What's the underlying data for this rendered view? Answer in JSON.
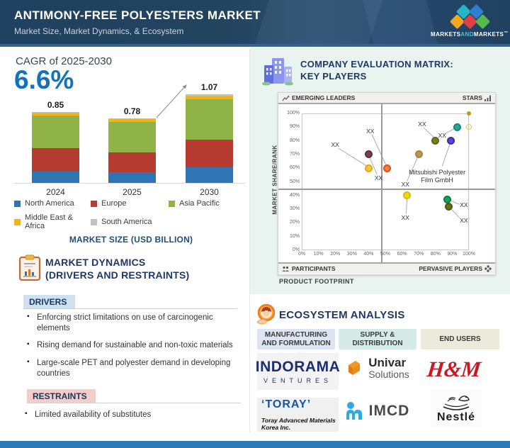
{
  "header": {
    "title": "ANTIMONY-FREE POLYESTERS MARKET",
    "subtitle": "Market Size, Market Dynamics, & Ecosystem",
    "brand": {
      "part1": "MARKETS",
      "part2": "AND",
      "part3": "MARKETS",
      "tm": "™"
    },
    "brand_colors": {
      "teal": "#2ab5c3",
      "blue": "#2f7fd0",
      "yellow": "#f2a71c",
      "red": "#e23e44",
      "green": "#57b948"
    }
  },
  "left": {
    "cagr_label": "CAGR of 2025-2030",
    "cagr_value": "6.6%",
    "dynamics": {
      "heading_line1": "MARKET DYNAMICS",
      "heading_line2": "(DRIVERS AND RESTRAINTS)",
      "drivers_label": "DRIVERS",
      "drivers": [
        "Enforcing strict limitations on use of carcinogenic elements",
        "Rising demand for sustainable and non-toxic materials",
        "Large-scale PET and polyester demand in developing countries"
      ],
      "restraints_label": "RESTRAINTS",
      "restraints": [
        "Limited availability of substitutes"
      ]
    }
  },
  "right": {
    "matrix_title_line1": "COMPANY EVALUATION MATRIX:",
    "matrix_title_line2": "KEY PLAYERS",
    "ecosystem": {
      "title": "ECOSYSTEM ANALYSIS",
      "columns": [
        {
          "line1": "MANUFACTURING",
          "line2": "AND FORMULATION",
          "bg": "#dde4f3"
        },
        {
          "line1": "SUPPLY &",
          "line2": "DISTRIBUTION",
          "bg": "#d5ebe7"
        },
        {
          "line1": "END USERS",
          "line2": "",
          "bg": "#eceadb"
        }
      ],
      "logos": {
        "indorama_line1": "INDORAMA",
        "indorama_line2": "VENTURES",
        "toray_line1": "‘TORAY’",
        "toray_line2": "Toray Advanced Materials Korea Inc.",
        "univar_line1": "Univar",
        "univar_line2": "Solutions",
        "imcd": "IMCD",
        "hm": "H&M",
        "nestle": "Nestlé"
      }
    }
  },
  "chart_data": [
    {
      "type": "bar",
      "stacked": true,
      "title": "MARKET SIZE (USD BILLION)",
      "cagr_label": "CAGR of 2025-2030",
      "cagr_value_pct": 6.6,
      "categories": [
        "2024",
        "2025",
        "2030"
      ],
      "totals": [
        0.85,
        0.78,
        1.07
      ],
      "ylim": [
        0,
        1.2
      ],
      "legend_position": "bottom",
      "series": [
        {
          "name": "North America",
          "color": "#2e75b6",
          "values": [
            0.14,
            0.13,
            0.19
          ]
        },
        {
          "name": "Europe",
          "color": "#b63b31",
          "values": [
            0.28,
            0.24,
            0.33
          ]
        },
        {
          "name": "Asia Pacific",
          "color": "#8fb347",
          "values": [
            0.39,
            0.37,
            0.49
          ]
        },
        {
          "name": "Middle East & Africa",
          "color": "#f2b31b",
          "values": [
            0.03,
            0.03,
            0.04
          ]
        },
        {
          "name": "South America",
          "color": "#c2c2c2",
          "values": [
            0.01,
            0.01,
            0.02
          ]
        }
      ]
    },
    {
      "type": "scatter",
      "title": "COMPANY EVALUATION MATRIX: KEY PLAYERS",
      "xlabel": "PRODUCT FOOTPRINT",
      "ylabel": "MARKET SHARE/RANK",
      "xlim": [
        0,
        100
      ],
      "ylim": [
        0,
        100
      ],
      "tick_step": 10,
      "tick_suffix": "%",
      "quadrants": {
        "top_left": "EMERGING LEADERS",
        "top_right": "STARS",
        "bottom_left": "PARTICIPANTS",
        "bottom_right": "PERVASIVE PLAYERS"
      },
      "divider_x": 48,
      "divider_y": 44.5,
      "points": [
        {
          "x": 40,
          "y": 70,
          "color": "#7a4522",
          "ring": "#5b2a62"
        },
        {
          "x": 40,
          "y": 60,
          "color": "#f6c63e",
          "ring": "#e6a711"
        },
        {
          "x": 51,
          "y": 60,
          "color": "#f08038",
          "ring": "#dd5310"
        },
        {
          "x": 70,
          "y": 70,
          "color": "#b99553",
          "ring": "#a8823f"
        },
        {
          "x": 80,
          "y": 80,
          "color": "#76801c",
          "ring": "#5e660f"
        },
        {
          "x": 93,
          "y": 90,
          "color": "#2fa18c",
          "ring": "#13877c"
        },
        {
          "x": 89,
          "y": 80,
          "color": "#5b44d0",
          "ring": "#3e2ba8"
        },
        {
          "x": 63,
          "y": 40,
          "color": "#f3d714",
          "ring": "#d9b90a"
        },
        {
          "x": 87,
          "y": 37,
          "color": "#1ba25c",
          "ring": "#0f7c44"
        },
        {
          "x": 88,
          "y": 32,
          "color": "#68701a",
          "ring": "#505810"
        },
        {
          "x": 100,
          "y": 100,
          "color": "#c8960c",
          "ring": "#c8960c",
          "r": 3
        },
        {
          "x": 100,
          "y": 90,
          "color": "none",
          "ring": "#e2c64e",
          "r": 4,
          "hollow": true
        }
      ],
      "labels": [
        {
          "text": "XX",
          "x": 20,
          "y": 77,
          "line": [
            [
              22,
              74.5
            ],
            [
              39,
              61.5
            ]
          ]
        },
        {
          "text": "XX",
          "x": 41,
          "y": 87,
          "line": [
            [
              42,
              84.5
            ],
            [
              50.5,
              62
            ]
          ]
        },
        {
          "text": "XX",
          "x": 46,
          "y": 53,
          "line": [
            [
              45,
              55.5
            ],
            [
              40.5,
              68
            ]
          ]
        },
        {
          "text": "XX",
          "x": 72,
          "y": 92,
          "line": [
            [
              73,
              89.5
            ],
            [
              79.5,
              82
            ]
          ]
        },
        {
          "text": "XX",
          "x": 84,
          "y": 84,
          "line": [
            [
              85.5,
              85
            ],
            [
              91.5,
              89
            ]
          ]
        },
        {
          "text": "XX",
          "x": 62,
          "y": 48,
          "line": [
            [
              63,
              50.5
            ],
            [
              69.5,
              68.5
            ]
          ]
        },
        {
          "text": "XX",
          "x": 62,
          "y": 24,
          "line": [
            [
              62.5,
              26.5
            ],
            [
              63,
              38.5
            ]
          ]
        },
        {
          "text": "XX",
          "x": 97,
          "y": 33,
          "line": [
            [
              94.5,
              33.5
            ],
            [
              88.8,
              36.3
            ]
          ]
        },
        {
          "text": "XX",
          "x": 97,
          "y": 22,
          "line": [
            [
              94.5,
              23.5
            ],
            [
              88.8,
              31
            ]
          ]
        },
        {
          "text": "Mitsubishi Polyester\nFilm GmbH",
          "x": 81,
          "y": 57,
          "line": [
            [
              84,
              61.5
            ],
            [
              88.7,
              78
            ]
          ]
        }
      ]
    }
  ]
}
